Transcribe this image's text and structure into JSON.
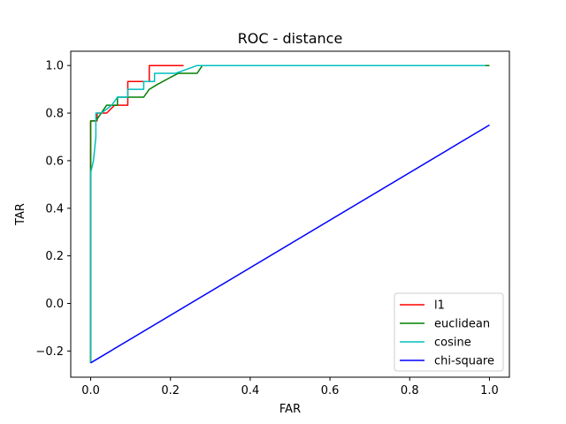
{
  "chart_data": {
    "type": "line",
    "title": "ROC - distance",
    "xlabel": "FAR",
    "ylabel": "TAR",
    "xlim": [
      -0.05,
      1.05
    ],
    "ylim": [
      -0.31,
      1.06
    ],
    "xticks": [
      0.0,
      0.2,
      0.4,
      0.6,
      0.8,
      1.0
    ],
    "xtick_labels": [
      "0.0",
      "0.2",
      "0.4",
      "0.6",
      "0.8",
      "1.0"
    ],
    "yticks": [
      -0.2,
      0.0,
      0.2,
      0.4,
      0.6,
      0.8,
      1.0
    ],
    "ytick_labels": [
      "−0.2",
      "0.0",
      "0.2",
      "0.4",
      "0.6",
      "0.8",
      "1.0"
    ],
    "grid": false,
    "legend_position": "lower-right",
    "series": [
      {
        "name": "l1",
        "color": "#ff0000",
        "x": [
          0.0,
          0.0,
          0.0,
          0.0,
          0.008,
          0.008,
          0.016,
          0.016,
          0.04,
          0.04,
          0.06,
          0.06,
          0.093,
          0.093,
          0.133,
          0.133,
          0.147,
          0.147,
          0.233
        ],
        "y": [
          -0.25,
          0.5,
          0.5,
          0.767,
          0.767,
          0.767,
          0.767,
          0.8,
          0.8,
          0.8,
          0.833,
          0.833,
          0.833,
          0.933,
          0.933,
          0.933,
          0.933,
          1.0,
          1.0
        ]
      },
      {
        "name": "euclidean",
        "color": "#008000",
        "x": [
          0.0,
          0.0,
          0.0,
          0.013,
          0.013,
          0.04,
          0.04,
          0.067,
          0.067,
          0.093,
          0.093,
          0.133,
          0.147,
          0.167,
          0.2,
          0.22,
          0.267,
          0.28,
          0.4,
          1.0
        ],
        "y": [
          -0.25,
          0.55,
          0.767,
          0.767,
          0.767,
          0.833,
          0.833,
          0.833,
          0.867,
          0.867,
          0.867,
          0.867,
          0.9,
          0.92,
          0.95,
          0.967,
          0.967,
          1.0,
          1.0,
          1.0
        ]
      },
      {
        "name": "cosine",
        "color": "#00bfbf",
        "x": [
          0.0,
          0.0,
          0.007,
          0.013,
          0.013,
          0.027,
          0.027,
          0.053,
          0.053,
          0.067,
          0.067,
          0.093,
          0.093,
          0.133,
          0.133,
          0.16,
          0.16,
          0.2,
          0.213,
          0.267,
          0.4,
          0.99
        ],
        "y": [
          -0.25,
          0.55,
          0.6,
          0.7,
          0.8,
          0.8,
          0.8,
          0.833,
          0.833,
          0.867,
          0.867,
          0.867,
          0.9,
          0.9,
          0.933,
          0.933,
          0.967,
          0.967,
          0.967,
          1.0,
          1.0,
          1.0
        ]
      },
      {
        "name": "chi-square",
        "color": "#0000ff",
        "x": [
          0.0,
          1.0
        ],
        "y": [
          -0.25,
          0.75
        ]
      }
    ]
  }
}
